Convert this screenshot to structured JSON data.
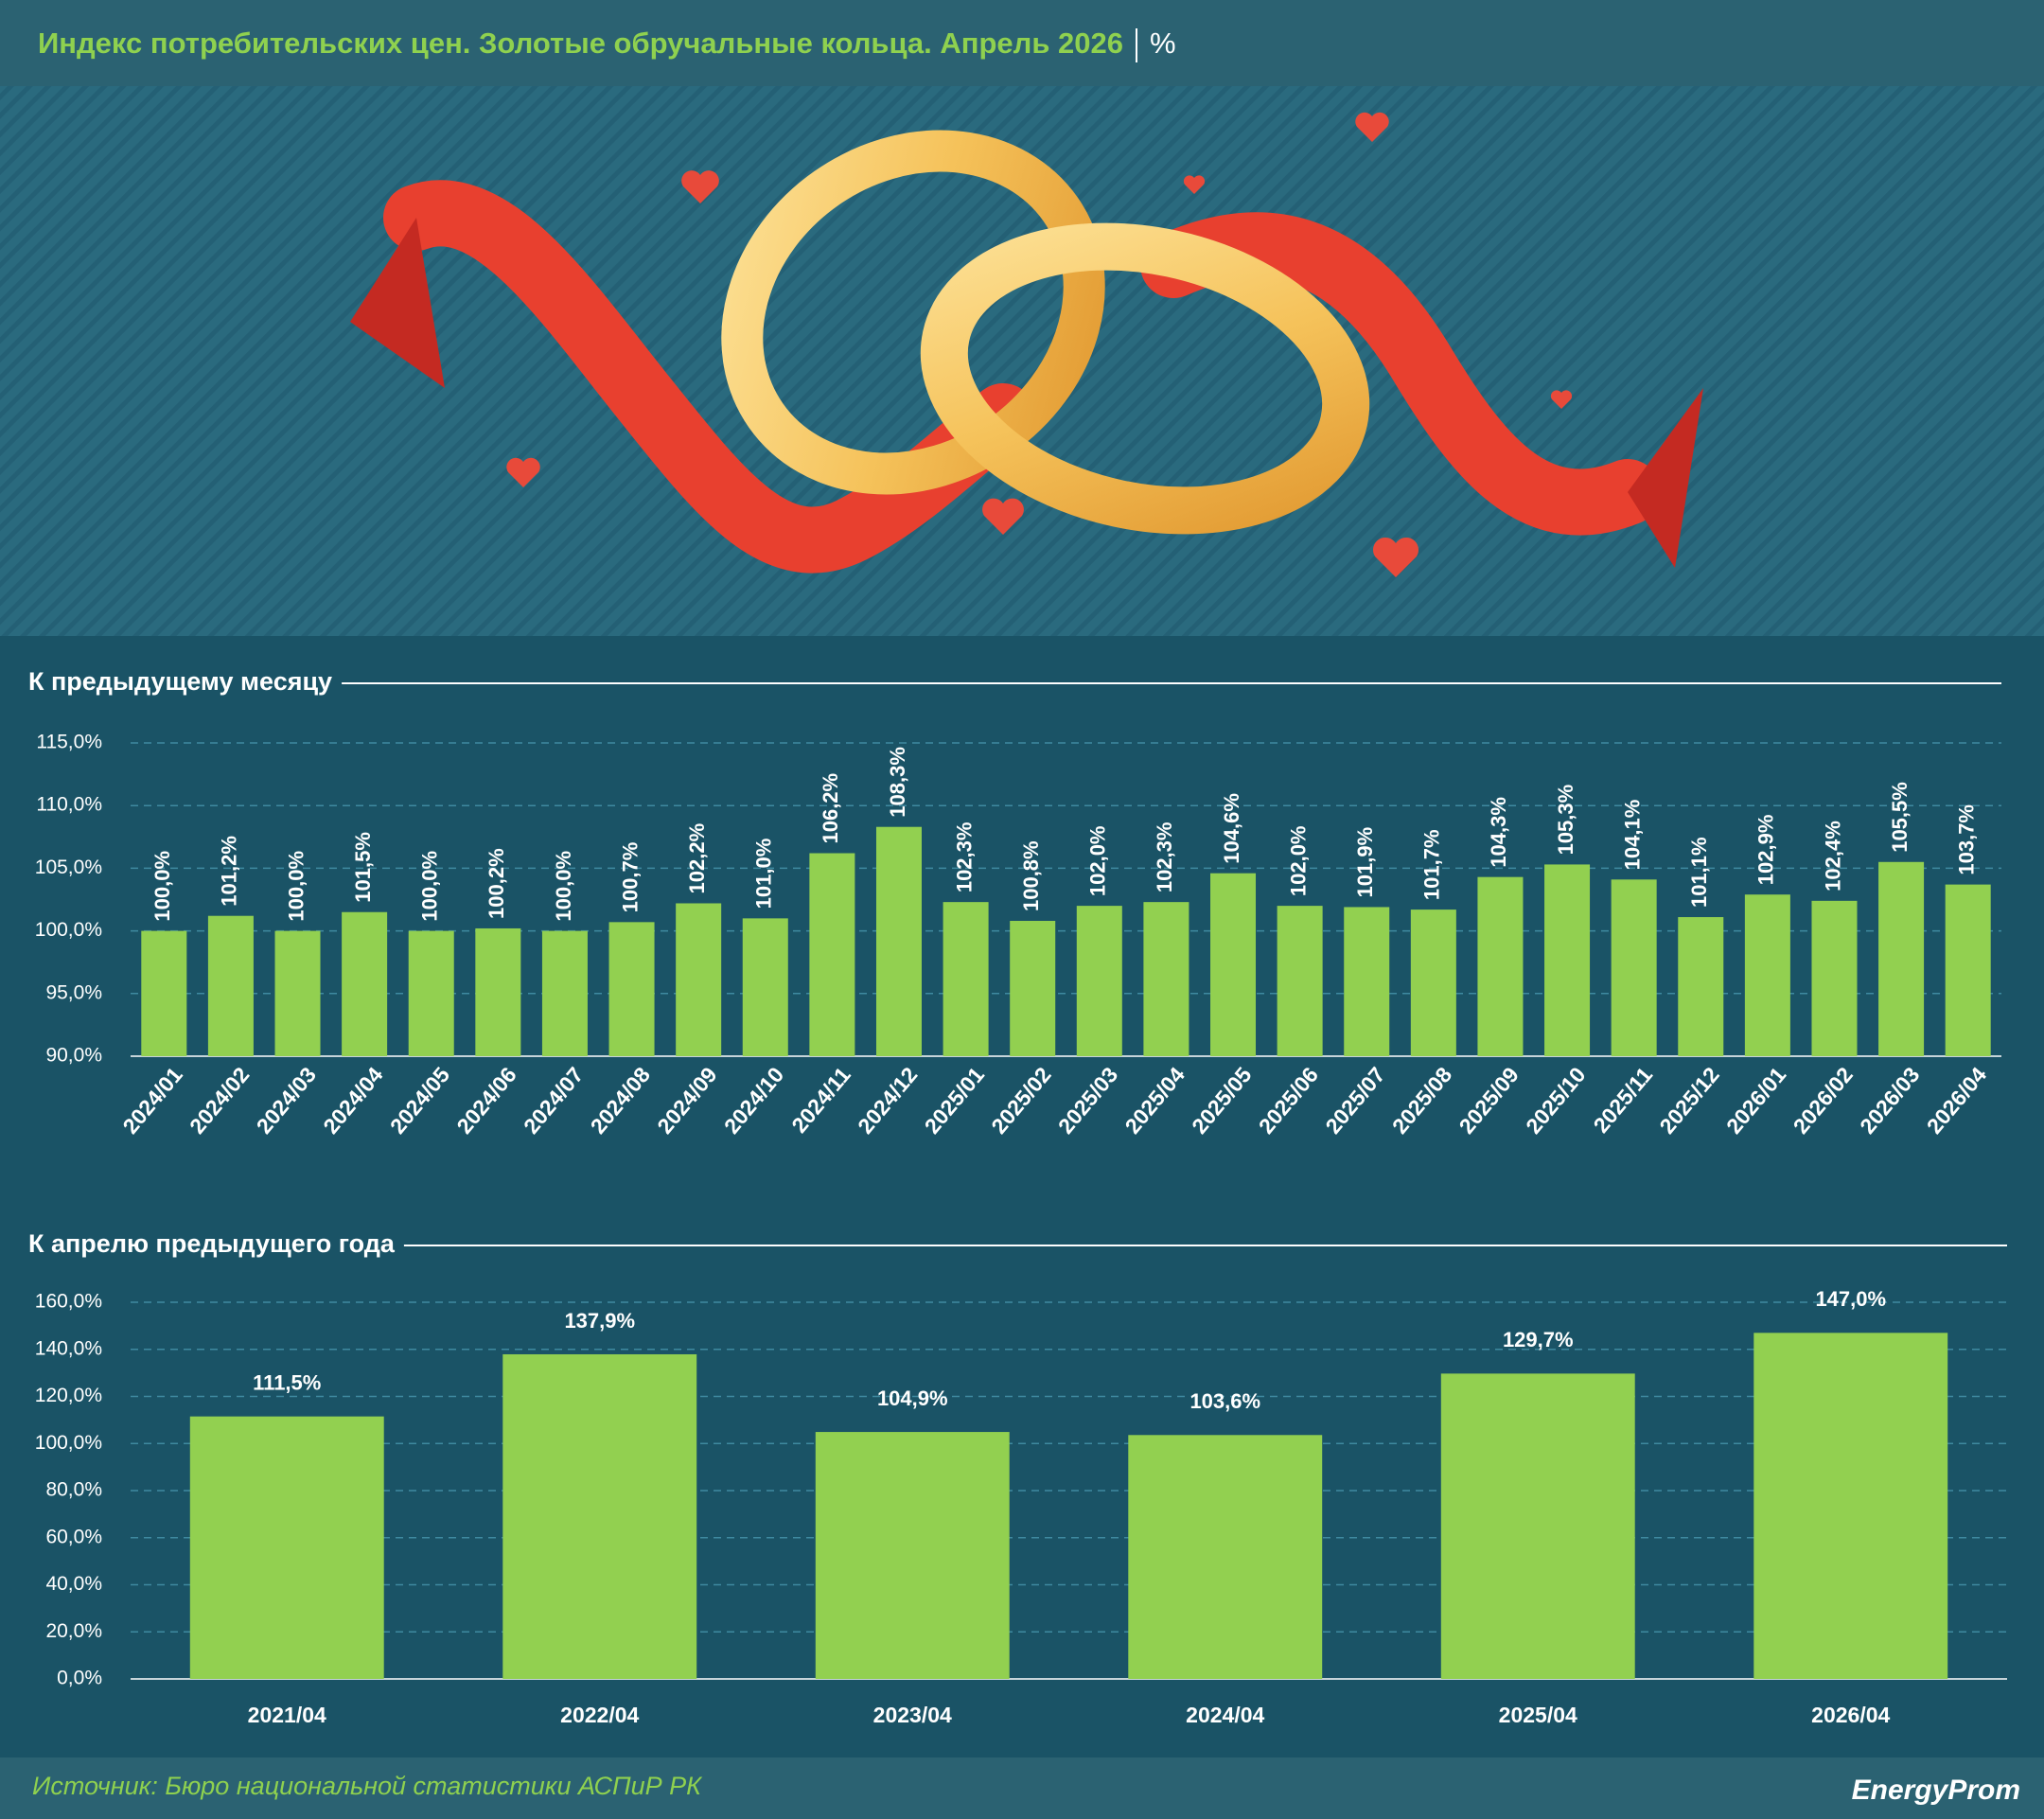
{
  "header": {
    "title": "Индекс потребительских цен. Золотые обручальные кольца. Апрель 2026",
    "unit": "%"
  },
  "chart_data": [
    {
      "type": "bar",
      "title": "К предыдущему месяцу",
      "categories": [
        "2024/01",
        "2024/02",
        "2024/03",
        "2024/04",
        "2024/05",
        "2024/06",
        "2024/07",
        "2024/08",
        "2024/09",
        "2024/10",
        "2024/11",
        "2024/12",
        "2025/01",
        "2025/02",
        "2025/03",
        "2025/04",
        "2025/05",
        "2025/06",
        "2025/07",
        "2025/08",
        "2025/09",
        "2025/10",
        "2025/11",
        "2025/12",
        "2026/01",
        "2026/02",
        "2026/03",
        "2026/04"
      ],
      "values": [
        100.0,
        101.2,
        100.0,
        101.5,
        100.0,
        100.2,
        100.0,
        100.7,
        102.2,
        101.0,
        106.2,
        108.3,
        102.3,
        100.8,
        102.0,
        102.3,
        104.6,
        102.0,
        101.9,
        101.7,
        104.3,
        105.3,
        104.1,
        101.1,
        102.9,
        102.4,
        105.5,
        103.7
      ],
      "value_labels": [
        "100,0%",
        "101,2%",
        "100,0%",
        "101,5%",
        "100,0%",
        "100,2%",
        "100,0%",
        "100,7%",
        "102,2%",
        "101,0%",
        "106,2%",
        "108,3%",
        "102,3%",
        "100,8%",
        "102,0%",
        "102,3%",
        "104,6%",
        "102,0%",
        "101,9%",
        "101,7%",
        "104,3%",
        "105,3%",
        "104,1%",
        "101,1%",
        "102,9%",
        "102,4%",
        "105,5%",
        "103,7%"
      ],
      "color": "#92d050",
      "ylim": [
        90,
        115
      ],
      "yticks": [
        {
          "value": 90,
          "label": "90,0%"
        },
        {
          "value": 95,
          "label": "95,0%"
        },
        {
          "value": 100,
          "label": "100,0%"
        },
        {
          "value": 105,
          "label": "105,0%"
        },
        {
          "value": 110,
          "label": "110,0%"
        },
        {
          "value": 115,
          "label": "115,0%"
        }
      ],
      "grid": true
    },
    {
      "type": "bar",
      "title": "К апрелю предыдущего года",
      "categories": [
        "2021/04",
        "2022/04",
        "2023/04",
        "2024/04",
        "2025/04",
        "2026/04"
      ],
      "values": [
        111.5,
        137.9,
        104.9,
        103.6,
        129.7,
        147.0
      ],
      "value_labels": [
        "111,5%",
        "137,9%",
        "104,9%",
        "103,6%",
        "129,7%",
        "147,0%"
      ],
      "color": "#92d050",
      "ylim": [
        0,
        160
      ],
      "yticks": [
        {
          "value": 0,
          "label": "0,0%"
        },
        {
          "value": 20,
          "label": "20,0%"
        },
        {
          "value": 40,
          "label": "40,0%"
        },
        {
          "value": 60,
          "label": "60,0%"
        },
        {
          "value": 80,
          "label": "80,0%"
        },
        {
          "value": 100,
          "label": "100,0%"
        },
        {
          "value": 120,
          "label": "120,0%"
        },
        {
          "value": 140,
          "label": "140,0%"
        },
        {
          "value": 160,
          "label": "160,0%"
        }
      ],
      "grid": true
    }
  ],
  "footer": {
    "source": "Источник: Бюро национальной статистики АСПиР РК",
    "logo": "EnergyProm"
  }
}
